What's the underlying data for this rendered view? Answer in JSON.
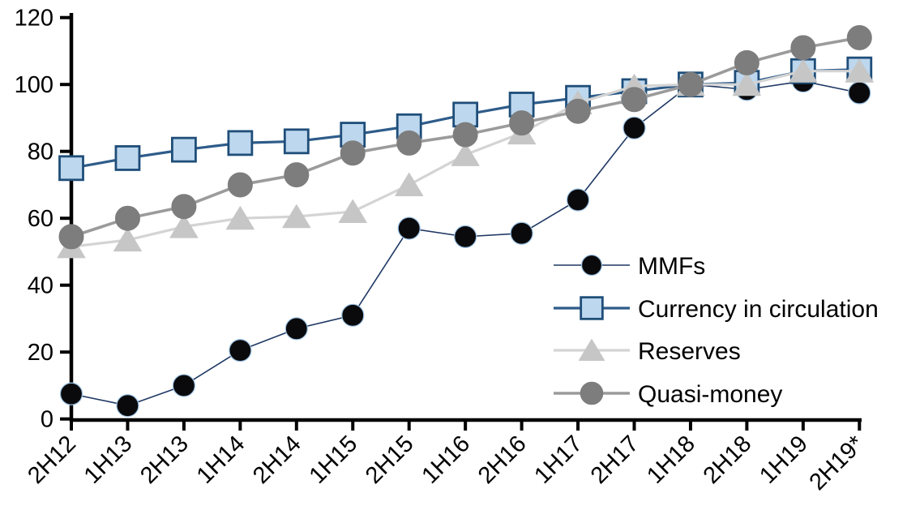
{
  "chart_data": {
    "type": "line",
    "categories": [
      "2H12",
      "1H13",
      "2H13",
      "1H14",
      "2H14",
      "1H15",
      "2H15",
      "1H16",
      "2H16",
      "1H17",
      "2H17",
      "1H18",
      "2H18",
      "1H19",
      "2H19*"
    ],
    "series": [
      {
        "name": "MMFs",
        "marker": "circle",
        "marker_fill": "#0a0a0c",
        "marker_stroke": "#9dc3e6",
        "line_color": "#1f3864",
        "values": [
          7.5,
          4,
          10,
          20.5,
          27,
          31,
          57,
          54.5,
          55.5,
          65.5,
          87,
          100,
          98.5,
          101,
          97.5
        ]
      },
      {
        "name": "Currency in circulation",
        "marker": "square",
        "marker_fill": "#bdd7ee",
        "marker_stroke": "#1f4e79",
        "line_color": "#2e5c8a",
        "values": [
          75,
          78,
          80.5,
          82.5,
          83,
          85,
          87.5,
          91,
          94,
          96,
          98,
          100,
          100.5,
          104,
          104.5
        ]
      },
      {
        "name": "Reserves",
        "marker": "triangle",
        "marker_fill": "#c6c6c6",
        "marker_stroke": "#c6c6c6",
        "line_color": "#d4d4d4",
        "values": [
          51.5,
          53.5,
          57.5,
          60,
          60.5,
          62,
          70,
          79,
          85.5,
          94.5,
          99.5,
          100,
          100,
          104,
          104
        ]
      },
      {
        "name": "Quasi-money",
        "marker": "circle",
        "marker_fill": "#7d7d7d",
        "marker_stroke": "#7d7d7d",
        "line_color": "#9b9b9b",
        "values": [
          54.5,
          60,
          63.5,
          70,
          73,
          79.5,
          82.5,
          85,
          88.5,
          92,
          95.5,
          100,
          106.5,
          111,
          114
        ]
      }
    ],
    "ylim": [
      0,
      120
    ],
    "ytick_step": 20,
    "ytick_labels": [
      "0",
      "20",
      "40",
      "60",
      "80",
      "100",
      "120"
    ],
    "grid": false,
    "legend_position": "inside-right-middle",
    "axis_color": "#000000",
    "note_marker": "*"
  }
}
